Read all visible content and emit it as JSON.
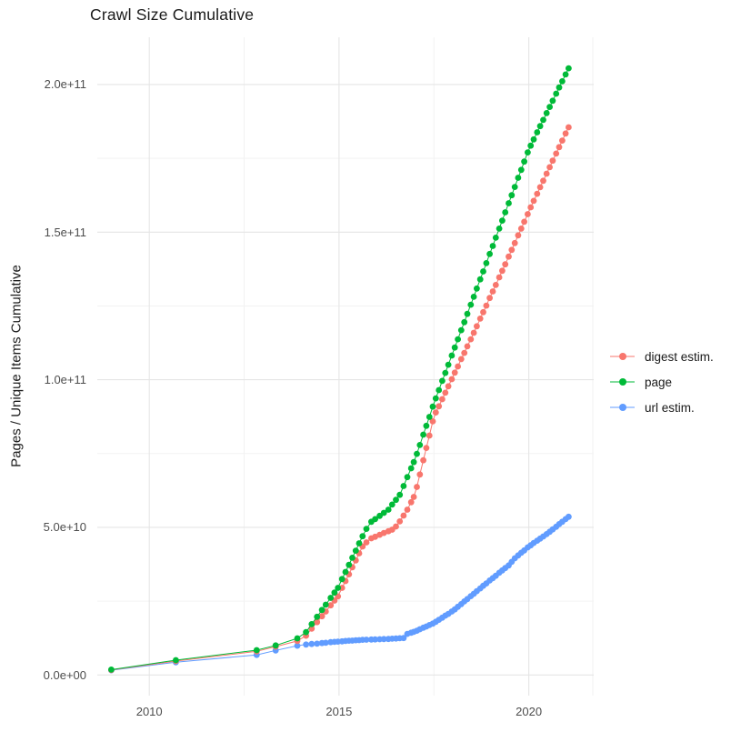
{
  "title": "Crawl Size Cumulative",
  "colors": {
    "digest": "#F8766D",
    "page": "#00BA38",
    "url": "#619CFF",
    "grid_major": "#E5E5E5",
    "grid_minor": "#F1F1F1",
    "axis_text": "#4d4d4d",
    "title_text": "#1a1a1a"
  },
  "chart_data": {
    "type": "scatter",
    "title": "Crawl Size Cumulative",
    "xlabel": "",
    "ylabel": "Pages / Unique Items Cumulative",
    "legend_position": "right",
    "grid": "on",
    "y_unit_multiplier": 1000000000.0,
    "xlim": [
      2008.63,
      2021.71
    ],
    "ylim_e9": [
      -7,
      216
    ],
    "x_ticks": [
      {
        "v": 2010,
        "label": "2010"
      },
      {
        "v": 2015,
        "label": "2015"
      },
      {
        "v": 2020,
        "label": "2020"
      }
    ],
    "x_minor": [
      2012.5,
      2017.5
    ],
    "y_ticks": [
      {
        "v": 0,
        "label": "0.0e+00"
      },
      {
        "v": 50,
        "label": "5.0e+10"
      },
      {
        "v": 100,
        "label": "1.0e+11"
      },
      {
        "v": 150,
        "label": "1.5e+11"
      },
      {
        "v": 200,
        "label": "2.0e+11"
      }
    ],
    "y_minor_e9": [
      25,
      75,
      125,
      175
    ],
    "x": [
      2009.0,
      2010.7,
      2012.83,
      2013.33,
      2013.9,
      2014.13,
      2014.28,
      2014.42,
      2014.55,
      2014.65,
      2014.78,
      2014.88,
      2014.97,
      2015.08,
      2015.17,
      2015.26,
      2015.35,
      2015.44,
      2015.53,
      2015.62,
      2015.72,
      2015.85,
      2015.95,
      2016.07,
      2016.18,
      2016.3,
      2016.4,
      2016.5,
      2016.6,
      2016.7,
      2016.8,
      2016.9,
      2016.97,
      2017.05,
      2017.13,
      2017.22,
      2017.3,
      2017.38,
      2017.47,
      2017.55,
      2017.63,
      2017.72,
      2017.8,
      2017.88,
      2017.97,
      2018.05,
      2018.13,
      2018.22,
      2018.3,
      2018.38,
      2018.47,
      2018.55,
      2018.63,
      2018.72,
      2018.8,
      2018.88,
      2018.97,
      2019.05,
      2019.13,
      2019.22,
      2019.3,
      2019.38,
      2019.47,
      2019.55,
      2019.63,
      2019.72,
      2019.8,
      2019.88,
      2019.97,
      2020.05,
      2020.13,
      2020.22,
      2020.3,
      2020.38,
      2020.47,
      2020.55,
      2020.63,
      2020.72,
      2020.8,
      2020.88,
      2020.97,
      2021.05
    ],
    "series": [
      {
        "name": "digest estim.",
        "color": "#F8766D",
        "values_e9": [
          1.7,
          4.7,
          8.0,
          9.6,
          11.5,
          13.3,
          15.7,
          17.9,
          19.9,
          21.5,
          23.6,
          25.2,
          26.6,
          29.5,
          31.8,
          34.1,
          36.5,
          38.8,
          41.2,
          43.5,
          44.9,
          46.3,
          46.8,
          47.5,
          48.1,
          48.7,
          49.2,
          50.3,
          52.0,
          54.0,
          56.0,
          58.5,
          60.3,
          63.7,
          67.9,
          72.7,
          76.9,
          81.1,
          85.9,
          88.9,
          91.0,
          93.4,
          95.6,
          97.8,
          100.2,
          102.4,
          104.5,
          107.0,
          109.1,
          111.3,
          113.7,
          115.9,
          118.1,
          120.7,
          122.9,
          125.1,
          127.7,
          129.9,
          132.1,
          134.7,
          136.9,
          139.1,
          141.7,
          144.0,
          146.3,
          148.9,
          151.2,
          153.5,
          156.1,
          158.4,
          160.6,
          163.0,
          165.2,
          167.4,
          169.8,
          172.0,
          174.2,
          176.6,
          178.8,
          181.0,
          183.4,
          185.5
        ]
      },
      {
        "name": "page",
        "color": "#00BA38",
        "values_e9": [
          1.8,
          5.0,
          8.4,
          10.0,
          12.4,
          14.5,
          17.2,
          19.7,
          22.0,
          23.8,
          26.1,
          27.9,
          29.5,
          32.5,
          34.9,
          37.3,
          39.7,
          42.1,
          44.6,
          47.0,
          49.5,
          51.9,
          52.8,
          53.9,
          54.9,
          56.0,
          57.7,
          59.3,
          61.0,
          64.0,
          67.0,
          70.0,
          72.1,
          74.9,
          77.9,
          81.4,
          84.4,
          87.4,
          90.9,
          93.7,
          96.5,
          99.6,
          102.3,
          105.1,
          108.2,
          110.9,
          113.7,
          116.8,
          119.5,
          122.3,
          125.4,
          128.1,
          130.9,
          134.0,
          136.7,
          139.5,
          142.6,
          145.3,
          148.1,
          151.2,
          153.9,
          156.7,
          159.8,
          162.5,
          165.3,
          168.4,
          171.1,
          173.9,
          177.0,
          179.3,
          181.4,
          183.8,
          185.9,
          188.0,
          190.3,
          192.4,
          194.5,
          196.9,
          199.0,
          201.1,
          203.4,
          205.5
        ]
      },
      {
        "name": "url estim.",
        "color": "#619CFF",
        "values_e9": [
          1.6,
          4.3,
          6.8,
          8.3,
          9.9,
          10.3,
          10.5,
          10.6,
          10.8,
          10.9,
          11.1,
          11.2,
          11.3,
          11.4,
          11.5,
          11.6,
          11.65,
          11.75,
          11.8,
          11.9,
          11.94,
          12.0,
          12.05,
          12.1,
          12.15,
          12.2,
          12.28,
          12.35,
          12.43,
          12.5,
          13.9,
          14.3,
          14.6,
          15.0,
          15.5,
          16.0,
          16.4,
          16.9,
          17.4,
          18.0,
          18.7,
          19.4,
          20.1,
          20.7,
          21.5,
          22.2,
          23.1,
          24.0,
          24.9,
          25.7,
          26.7,
          27.5,
          28.4,
          29.3,
          30.2,
          31.0,
          32.0,
          32.8,
          33.6,
          34.6,
          35.4,
          36.2,
          37.1,
          38.3,
          39.5,
          40.5,
          41.4,
          42.2,
          43.2,
          43.9,
          44.7,
          45.5,
          46.2,
          46.9,
          47.7,
          48.5,
          49.3,
          50.2,
          51.1,
          51.9,
          52.8,
          53.6
        ]
      }
    ]
  }
}
